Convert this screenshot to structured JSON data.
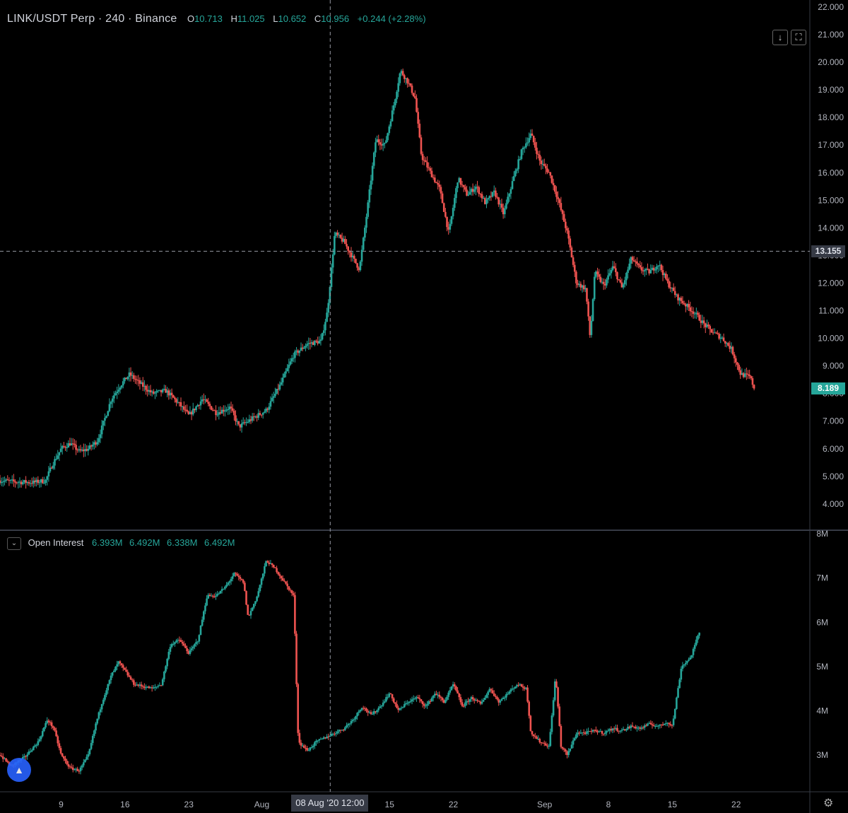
{
  "header": {
    "symbol": "LINK/USDT Perp · 240 · Binance",
    "o_label": "O",
    "o_value": "10.713",
    "h_label": "H",
    "h_value": "11.025",
    "l_label": "L",
    "l_value": "10.652",
    "c_label": "C",
    "c_value": "10.956",
    "change": "+0.244 (+2.28%)"
  },
  "indicator": {
    "collapse_icon": "chevron-down-icon",
    "name": "Open Interest",
    "values": [
      "6.393M",
      "6.492M",
      "6.338M",
      "6.492M"
    ]
  },
  "buttons": {
    "download_icon": "↓",
    "fullscreen_icon": "⛶"
  },
  "crosshair": {
    "price_label": "13.155",
    "time_label": "08 Aug '20   12:00"
  },
  "last_price": "8.189",
  "colors": {
    "up": "#26a69a",
    "down": "#ef5350",
    "background": "#000000",
    "crosshair_badge": "#363a45",
    "last_price_badge": "#26a69a"
  },
  "chart_data": [
    {
      "type": "candlestick",
      "title": "LINK/USDT Perp · 240 · Binance",
      "y_ticks": [
        "4.000",
        "5.000",
        "6.000",
        "7.000",
        "8.000",
        "9.000",
        "10.000",
        "11.000",
        "12.000",
        "13.000",
        "14.000",
        "15.000",
        "16.000",
        "17.000",
        "18.000",
        "19.000",
        "20.000",
        "21.000",
        "22.000"
      ],
      "ylim": [
        3.1,
        22
      ],
      "x_ticks": [
        "9",
        "16",
        "23",
        "Aug",
        "8",
        "15",
        "22",
        "Sep",
        "8",
        "15",
        "22"
      ],
      "x_tick_days": [
        8,
        15,
        22,
        30,
        37,
        44,
        51,
        61,
        68,
        75,
        82
      ],
      "xlim": [
        1.3,
        90
      ],
      "crosshair": {
        "day": 37.5,
        "price": 13.155
      },
      "close_path": [
        [
          1.3,
          4.85
        ],
        [
          3,
          4.8
        ],
        [
          5,
          4.78
        ],
        [
          6.3,
          4.85
        ],
        [
          7,
          5.4
        ],
        [
          8,
          6.0
        ],
        [
          9,
          6.2
        ],
        [
          10,
          5.9
        ],
        [
          11,
          6.0
        ],
        [
          12,
          6.3
        ],
        [
          13.5,
          7.8
        ],
        [
          14.5,
          8.3
        ],
        [
          15.5,
          8.7
        ],
        [
          16.5,
          8.4
        ],
        [
          18,
          8.0
        ],
        [
          19.5,
          8.1
        ],
        [
          21,
          7.6
        ],
        [
          22,
          7.2
        ],
        [
          23.5,
          7.8
        ],
        [
          25,
          7.3
        ],
        [
          26.5,
          7.5
        ],
        [
          27.5,
          6.8
        ],
        [
          29,
          7.1
        ],
        [
          30.5,
          7.4
        ],
        [
          32,
          8.3
        ],
        [
          33.5,
          9.4
        ],
        [
          35,
          9.8
        ],
        [
          36.5,
          9.9
        ],
        [
          37.2,
          11.0
        ],
        [
          38,
          13.8
        ],
        [
          39,
          13.5
        ],
        [
          40,
          12.9
        ],
        [
          40.7,
          12.5
        ],
        [
          41.5,
          14.5
        ],
        [
          42.5,
          17.2
        ],
        [
          43.5,
          17.0
        ],
        [
          44.5,
          18.5
        ],
        [
          45.2,
          19.7
        ],
        [
          46,
          19.3
        ],
        [
          46.8,
          18.7
        ],
        [
          47.5,
          16.6
        ],
        [
          48.5,
          16.0
        ],
        [
          49.5,
          15.4
        ],
        [
          50.5,
          13.8
        ],
        [
          51.5,
          15.8
        ],
        [
          52.5,
          15.2
        ],
        [
          53.5,
          15.5
        ],
        [
          54.5,
          14.9
        ],
        [
          55.5,
          15.3
        ],
        [
          56.5,
          14.5
        ],
        [
          57.5,
          15.7
        ],
        [
          58.5,
          16.8
        ],
        [
          59.5,
          17.4
        ],
        [
          60.5,
          16.4
        ],
        [
          61.5,
          16.0
        ],
        [
          62.5,
          15.0
        ],
        [
          63.5,
          13.8
        ],
        [
          64.5,
          12.0
        ],
        [
          65.5,
          11.8
        ],
        [
          66,
          10.0
        ],
        [
          66.5,
          12.4
        ],
        [
          67.5,
          11.9
        ],
        [
          68.5,
          12.6
        ],
        [
          69.5,
          11.8
        ],
        [
          70.5,
          12.9
        ],
        [
          71.5,
          12.5
        ],
        [
          72.5,
          12.4
        ],
        [
          73.5,
          12.7
        ],
        [
          74.5,
          12.0
        ],
        [
          75.5,
          11.5
        ],
        [
          76.5,
          11.2
        ],
        [
          77.5,
          10.9
        ],
        [
          78.5,
          10.5
        ],
        [
          79.5,
          10.2
        ],
        [
          80.5,
          10.0
        ],
        [
          81.5,
          9.6
        ],
        [
          82.5,
          8.7
        ],
        [
          83.5,
          8.6
        ],
        [
          84,
          8.19
        ]
      ],
      "last_price": 8.189
    },
    {
      "type": "candlestick",
      "title": "Open Interest",
      "y_ticks": [
        "3M",
        "4M",
        "5M",
        "6M",
        "7M",
        "8M"
      ],
      "ylim": [
        2.2,
        8.05
      ],
      "close_path": [
        [
          1.3,
          3.0
        ],
        [
          2.5,
          2.75
        ],
        [
          4,
          2.95
        ],
        [
          5.5,
          3.3
        ],
        [
          6.5,
          3.8
        ],
        [
          7.2,
          3.6
        ],
        [
          8,
          3.0
        ],
        [
          9,
          2.7
        ],
        [
          10,
          2.65
        ],
        [
          11,
          3.0
        ],
        [
          11.8,
          3.7
        ],
        [
          12.5,
          4.2
        ],
        [
          13.5,
          4.8
        ],
        [
          14.3,
          5.1
        ],
        [
          15,
          4.9
        ],
        [
          16,
          4.6
        ],
        [
          17,
          4.55
        ],
        [
          18,
          4.5
        ],
        [
          19,
          4.6
        ],
        [
          20,
          5.5
        ],
        [
          21,
          5.6
        ],
        [
          22,
          5.3
        ],
        [
          23,
          5.6
        ],
        [
          24,
          6.6
        ],
        [
          25,
          6.6
        ],
        [
          26,
          6.8
        ],
        [
          27,
          7.1
        ],
        [
          28,
          6.9
        ],
        [
          28.5,
          6.1
        ],
        [
          29.5,
          6.6
        ],
        [
          30.5,
          7.4
        ],
        [
          31.5,
          7.2
        ],
        [
          32.5,
          6.9
        ],
        [
          33.5,
          6.6
        ],
        [
          34,
          3.3
        ],
        [
          35,
          3.1
        ],
        [
          36,
          3.3
        ],
        [
          37,
          3.4
        ],
        [
          38,
          3.5
        ],
        [
          39,
          3.6
        ],
        [
          40,
          3.8
        ],
        [
          41,
          4.1
        ],
        [
          42,
          3.9
        ],
        [
          43,
          4.1
        ],
        [
          44,
          4.4
        ],
        [
          45,
          4.0
        ],
        [
          46,
          4.2
        ],
        [
          47,
          4.3
        ],
        [
          48,
          4.1
        ],
        [
          49,
          4.4
        ],
        [
          50,
          4.2
        ],
        [
          51,
          4.6
        ],
        [
          52,
          4.1
        ],
        [
          53,
          4.3
        ],
        [
          54,
          4.15
        ],
        [
          55,
          4.5
        ],
        [
          56,
          4.2
        ],
        [
          57,
          4.4
        ],
        [
          58,
          4.6
        ],
        [
          59,
          4.5
        ],
        [
          59.5,
          3.5
        ],
        [
          60.5,
          3.3
        ],
        [
          61.5,
          3.2
        ],
        [
          62.2,
          4.8
        ],
        [
          62.8,
          3.2
        ],
        [
          63.5,
          3.0
        ],
        [
          64.5,
          3.5
        ],
        [
          65.5,
          3.5
        ],
        [
          66.5,
          3.55
        ],
        [
          67.5,
          3.5
        ],
        [
          68.5,
          3.6
        ],
        [
          69.5,
          3.55
        ],
        [
          70.5,
          3.65
        ],
        [
          71.5,
          3.6
        ],
        [
          72.5,
          3.7
        ],
        [
          73.5,
          3.65
        ],
        [
          74.5,
          3.75
        ],
        [
          75,
          3.65
        ],
        [
          76,
          5.0
        ],
        [
          77,
          5.2
        ],
        [
          78,
          5.8
        ]
      ]
    }
  ]
}
